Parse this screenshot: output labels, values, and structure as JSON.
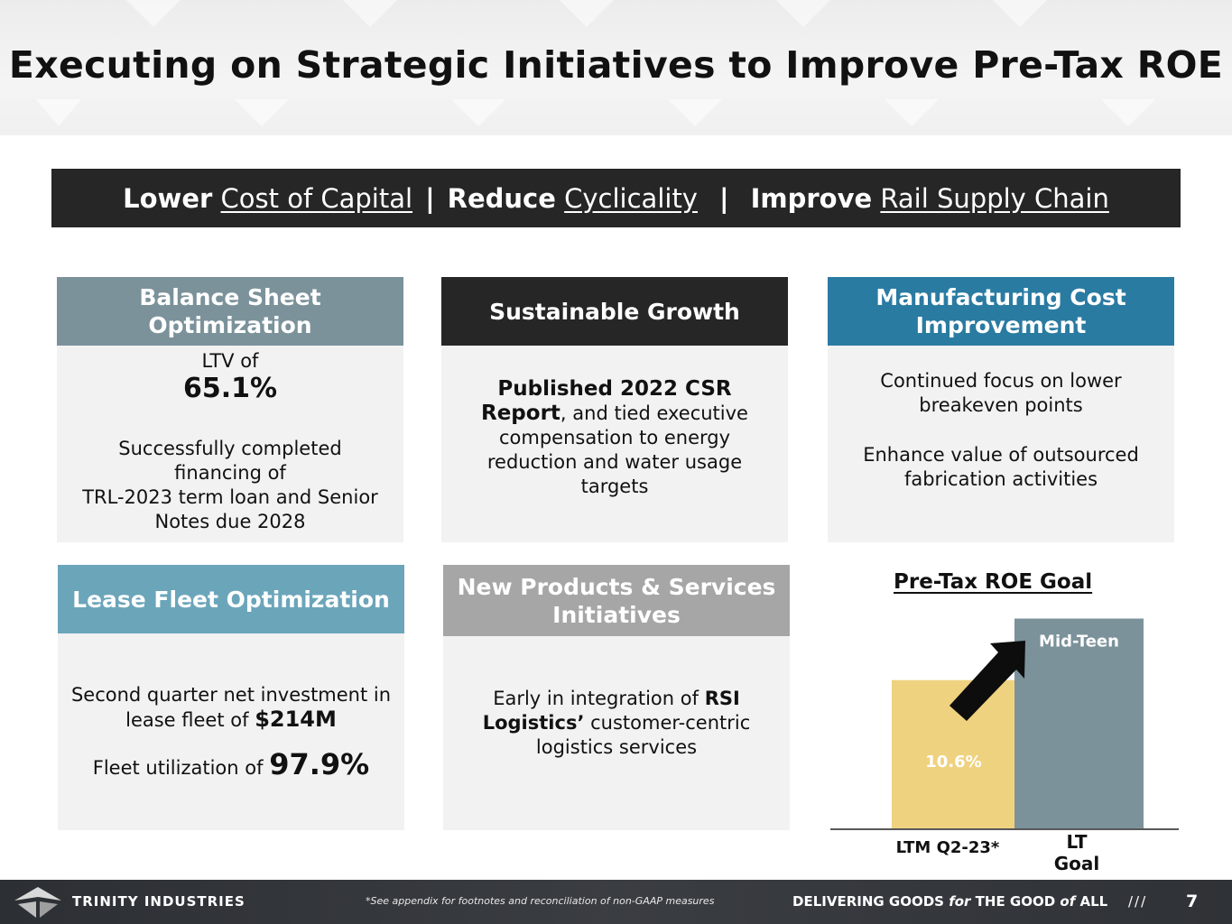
{
  "title": "Executing on Strategic Initiatives to Improve Pre-Tax ROE",
  "banner": {
    "part1_bold": "Lower",
    "part1_link": "Cost of Capital",
    "sep1": "|",
    "part2_bold": "Reduce",
    "part2_link": "Cyclicality",
    "sep2": "|",
    "part3_bold": "Improve",
    "part3_link": "Rail Supply Chain"
  },
  "cards": {
    "balance": {
      "heading": "Balance Sheet Optimization",
      "ltv_label": "LTV of",
      "ltv_value": "65.1%",
      "text": "Successfully completed financing of",
      "text2": "TRL-2023 term loan and Senior Notes due 2028",
      "color": "#7b929b"
    },
    "growth": {
      "heading": "Sustainable Growth",
      "bold": "Published 2022 CSR Report",
      "text": ", and tied executive compensation to energy reduction and water usage targets",
      "color": "#262626"
    },
    "manufacturing": {
      "heading": "Manufacturing Cost Improvement",
      "text1": "Continued focus on lower breakeven points",
      "text2": "Enhance value of outsourced fabrication activities",
      "color": "#2a7ba2"
    },
    "lease": {
      "heading": "Lease Fleet Optimization",
      "text1": "Second quarter net investment in lease fleet of",
      "value1": "$214M",
      "text2": "Fleet utilization of",
      "value2": "97.9%",
      "color": "#6ba5ba"
    },
    "products": {
      "heading": "New Products & Services Initiatives",
      "text1": "Early in integration of",
      "bold": "RSI Logistics’",
      "text2": "customer-centric logistics services",
      "color": "#a6a6a6"
    }
  },
  "chart_data": {
    "type": "bar",
    "title": "Pre-Tax ROE Goal",
    "categories": [
      "LTM Q2-23*",
      "LT Goal"
    ],
    "values": [
      10.6,
      15
    ],
    "data_labels": [
      "10.6%",
      "Mid-Teen"
    ],
    "colors": [
      "#efd27f",
      "#7b929b"
    ],
    "ylim": [
      0,
      16
    ],
    "xlabel": "",
    "ylabel": "",
    "annotation": "arrow pointing up from LTM Q2-23* to LT Goal"
  },
  "footer": {
    "brand": "TRINITY INDUSTRIES",
    "note": "*See appendix for footnotes and reconciliation of non-GAAP measures",
    "tag_a": "DELIVERING GOODS ",
    "tag_b": "for",
    "tag_c": " THE GOOD ",
    "tag_d": "of",
    "tag_e": " ALL",
    "slashes": "///",
    "page": "7"
  }
}
